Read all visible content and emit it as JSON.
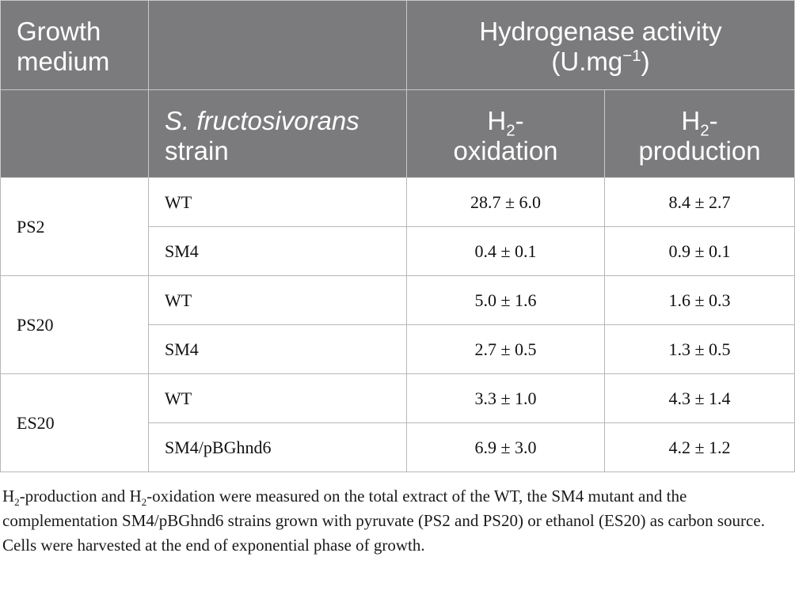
{
  "table": {
    "header": {
      "growth_medium": "Growth medium",
      "hydrogenase_activity": "Hydrogenase activity",
      "units_prefix": "(U.mg",
      "units_exp": "−1",
      "units_suffix": ")",
      "strain_species": "S. fructosivorans",
      "strain_word": "strain",
      "h2": "H",
      "h2_sub": "2",
      "oxidation_dash": "-",
      "oxidation": "oxidation",
      "production_dash": "-",
      "production": "production"
    },
    "groups": [
      {
        "medium": "PS2",
        "rows": [
          {
            "strain": "WT",
            "oxidation": "28.7 ± 6.0",
            "production": "8.4 ± 2.7"
          },
          {
            "strain": "SM4",
            "oxidation": "0.4 ± 0.1",
            "production": "0.9 ± 0.1"
          }
        ]
      },
      {
        "medium": "PS20",
        "rows": [
          {
            "strain": "WT",
            "oxidation": "5.0 ± 1.6",
            "production": "1.6 ± 0.3"
          },
          {
            "strain": "SM4",
            "oxidation": "2.7 ± 0.5",
            "production": "1.3 ± 0.5"
          }
        ]
      },
      {
        "medium": "ES20",
        "rows": [
          {
            "strain": "WT",
            "oxidation": "3.3 ± 1.0",
            "production": "4.3 ± 1.4"
          },
          {
            "strain": "SM4/pBGhnd6",
            "oxidation": "6.9 ± 3.0",
            "production": "4.2 ± 1.2"
          }
        ]
      }
    ]
  },
  "caption": {
    "h_a": "H",
    "sub_a": "2",
    "part_a": "-production and H",
    "sub_b": "2",
    "part_b": "-oxidation were measured on the total extract of the WT, the SM4 mutant and the complementation SM4/pBGhnd6 strains grown with pyruvate (PS2 and PS20) or ethanol (ES20) as carbon source. Cells were harvested at the end of exponential phase of growth."
  },
  "colors": {
    "header_bg": "#7b7b7d",
    "header_text": "#ffffff",
    "grid": "#b7b7b7"
  }
}
